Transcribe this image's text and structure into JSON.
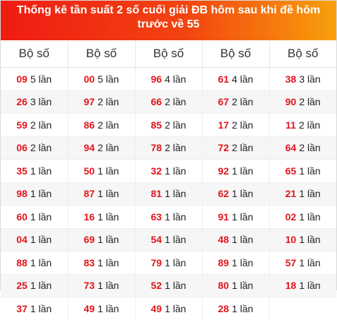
{
  "title": "Thống kê tần suất 2 số cuối giải ĐB hôm sau khi đề hôm trước về 55",
  "headers": [
    "Bộ số",
    "Bộ số",
    "Bộ số",
    "Bộ số",
    "Bộ số"
  ],
  "count_suffix": "lần",
  "colors": {
    "title_gradient_start": "#ef1b12",
    "title_gradient_end": "#f8a00b",
    "number_red": "#e3141b"
  },
  "rows": [
    [
      {
        "num": "09",
        "count": "5"
      },
      {
        "num": "00",
        "count": "5"
      },
      {
        "num": "96",
        "count": "4"
      },
      {
        "num": "61",
        "count": "4"
      },
      {
        "num": "38",
        "count": "3"
      }
    ],
    [
      {
        "num": "26",
        "count": "3"
      },
      {
        "num": "97",
        "count": "2"
      },
      {
        "num": "66",
        "count": "2"
      },
      {
        "num": "67",
        "count": "2"
      },
      {
        "num": "90",
        "count": "2"
      }
    ],
    [
      {
        "num": "59",
        "count": "2"
      },
      {
        "num": "86",
        "count": "2"
      },
      {
        "num": "85",
        "count": "2"
      },
      {
        "num": "17",
        "count": "2"
      },
      {
        "num": "11",
        "count": "2"
      }
    ],
    [
      {
        "num": "06",
        "count": "2"
      },
      {
        "num": "94",
        "count": "2"
      },
      {
        "num": "78",
        "count": "2"
      },
      {
        "num": "72",
        "count": "2"
      },
      {
        "num": "64",
        "count": "2"
      }
    ],
    [
      {
        "num": "35",
        "count": "1"
      },
      {
        "num": "50",
        "count": "1"
      },
      {
        "num": "32",
        "count": "1"
      },
      {
        "num": "92",
        "count": "1"
      },
      {
        "num": "65",
        "count": "1"
      }
    ],
    [
      {
        "num": "98",
        "count": "1"
      },
      {
        "num": "87",
        "count": "1"
      },
      {
        "num": "81",
        "count": "1"
      },
      {
        "num": "62",
        "count": "1"
      },
      {
        "num": "21",
        "count": "1"
      }
    ],
    [
      {
        "num": "60",
        "count": "1"
      },
      {
        "num": "16",
        "count": "1"
      },
      {
        "num": "63",
        "count": "1"
      },
      {
        "num": "91",
        "count": "1"
      },
      {
        "num": "02",
        "count": "1"
      }
    ],
    [
      {
        "num": "04",
        "count": "1"
      },
      {
        "num": "69",
        "count": "1"
      },
      {
        "num": "54",
        "count": "1"
      },
      {
        "num": "48",
        "count": "1"
      },
      {
        "num": "10",
        "count": "1"
      }
    ],
    [
      {
        "num": "88",
        "count": "1"
      },
      {
        "num": "83",
        "count": "1"
      },
      {
        "num": "79",
        "count": "1"
      },
      {
        "num": "89",
        "count": "1"
      },
      {
        "num": "57",
        "count": "1"
      }
    ],
    [
      {
        "num": "25",
        "count": "1"
      },
      {
        "num": "73",
        "count": "1"
      },
      {
        "num": "52",
        "count": "1"
      },
      {
        "num": "80",
        "count": "1"
      },
      {
        "num": "18",
        "count": "1"
      }
    ],
    [
      {
        "num": "37",
        "count": "1"
      },
      {
        "num": "49",
        "count": "1"
      },
      {
        "num": "49",
        "count": "1"
      },
      {
        "num": "28",
        "count": "1"
      },
      null
    ]
  ]
}
